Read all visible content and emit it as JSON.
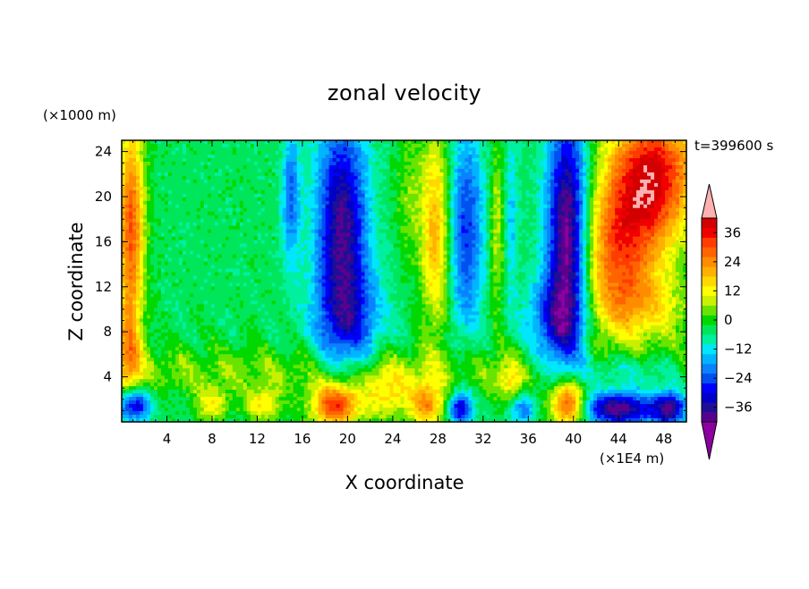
{
  "chart_data": {
    "type": "heatmap",
    "title": "zonal velocity",
    "xlabel": "X coordinate",
    "ylabel": "Z coordinate",
    "x_unit": "(×1E4 m)",
    "y_unit": "(×1000 m)",
    "time_label": "t=399600 s",
    "xlim": [
      0,
      50
    ],
    "ylim": [
      0,
      25
    ],
    "x_ticks": [
      4,
      8,
      12,
      16,
      20,
      24,
      28,
      32,
      36,
      40,
      44,
      48
    ],
    "y_ticks": [
      4,
      8,
      12,
      16,
      20,
      24
    ],
    "x_tick_labels": [
      "4",
      "8",
      "12",
      "16",
      "20",
      "24",
      "28",
      "32",
      "36",
      "40",
      "44",
      "48"
    ],
    "y_tick_labels": [
      "4",
      "8",
      "12",
      "16",
      "20",
      "24"
    ],
    "colorbar": {
      "min": -42,
      "max": 42,
      "step": 4,
      "label_values": [
        36,
        24,
        12,
        0,
        -12,
        -24,
        -36
      ],
      "labels": [
        "36",
        "24",
        "12",
        "0",
        "−12",
        "−24",
        "−36"
      ],
      "colors": [
        "#5a008f",
        "#1f0f96",
        "#0000c8",
        "#0000ff",
        "#0050f0",
        "#0a82ff",
        "#00b4ff",
        "#00e6ff",
        "#00f0a0",
        "#00e65a",
        "#00d800",
        "#68e400",
        "#c8f000",
        "#ffff00",
        "#ffd800",
        "#ffb000",
        "#ff8c00",
        "#ff6400",
        "#ff3c00",
        "#f00000",
        "#d20000"
      ],
      "under_color": "#8c00a0",
      "over_color": "#ffb0b0"
    },
    "features": [
      {
        "x": 19.5,
        "z": 18,
        "sx": 2.2,
        "sz": 9,
        "v": -34
      },
      {
        "x": 20,
        "z": 9,
        "sx": 3,
        "sz": 5,
        "v": -20
      },
      {
        "x": 39.5,
        "z": 17,
        "sx": 1.8,
        "sz": 10,
        "v": -42
      },
      {
        "x": 38.5,
        "z": 9,
        "sx": 2.5,
        "sz": 4,
        "v": -22
      },
      {
        "x": 30.5,
        "z": 17,
        "sx": 1.6,
        "sz": 9,
        "v": -22
      },
      {
        "x": 15,
        "z": 20,
        "sx": 0.8,
        "sz": 6,
        "v": -18
      },
      {
        "x": 34.5,
        "z": 18,
        "sx": 0.6,
        "sz": 7,
        "v": -10
      },
      {
        "x": 27.8,
        "z": 17,
        "sx": 1.3,
        "sz": 9,
        "v": 24
      },
      {
        "x": 25.5,
        "z": 20,
        "sx": 1.2,
        "sz": 6,
        "v": 8
      },
      {
        "x": 33.2,
        "z": 17,
        "sx": 0.7,
        "sz": 8,
        "v": 12
      },
      {
        "x": 0.8,
        "z": 17,
        "sx": 1.2,
        "sz": 10,
        "v": 34
      },
      {
        "x": 0.5,
        "z": 6,
        "sx": 1.2,
        "sz": 4,
        "v": 16
      },
      {
        "x": 47,
        "z": 22,
        "sx": 4,
        "sz": 6,
        "v": 42
      },
      {
        "x": 44,
        "z": 15,
        "sx": 3.5,
        "sz": 6,
        "v": 30
      },
      {
        "x": 46,
        "z": 10,
        "sx": 5,
        "sz": 3,
        "v": 14
      },
      {
        "x": 44,
        "z": 1.2,
        "sx": 3,
        "sz": 1.5,
        "v": -38
      },
      {
        "x": 48.5,
        "z": 1.2,
        "sx": 1.5,
        "sz": 1.5,
        "v": -34
      },
      {
        "x": 45,
        "z": 4.5,
        "sx": 6,
        "sz": 1.5,
        "v": -14
      },
      {
        "x": 1,
        "z": 1.5,
        "sx": 1.5,
        "sz": 1.5,
        "v": -32
      },
      {
        "x": 19,
        "z": 1.5,
        "sx": 2.2,
        "sz": 2,
        "v": 38
      },
      {
        "x": 39.5,
        "z": 1.5,
        "sx": 1.5,
        "sz": 2,
        "v": 38
      },
      {
        "x": 30,
        "z": 1.2,
        "sx": 1,
        "sz": 1.5,
        "v": -28
      },
      {
        "x": 35.5,
        "z": 1.2,
        "sx": 1.2,
        "sz": 1.5,
        "v": -16
      },
      {
        "x": 27,
        "z": 1.5,
        "sx": 1.5,
        "sz": 2,
        "v": 26
      },
      {
        "x": 23.5,
        "z": 2.5,
        "sx": 2,
        "sz": 2.5,
        "v": 16
      },
      {
        "x": 34.5,
        "z": 3.5,
        "sx": 1,
        "sz": 2,
        "v": 14
      },
      {
        "x": 12.5,
        "z": 1.5,
        "sx": 1.5,
        "sz": 1.5,
        "v": 18
      },
      {
        "x": 8,
        "z": 1.5,
        "sx": 1.5,
        "sz": 1.5,
        "v": 16
      }
    ]
  }
}
